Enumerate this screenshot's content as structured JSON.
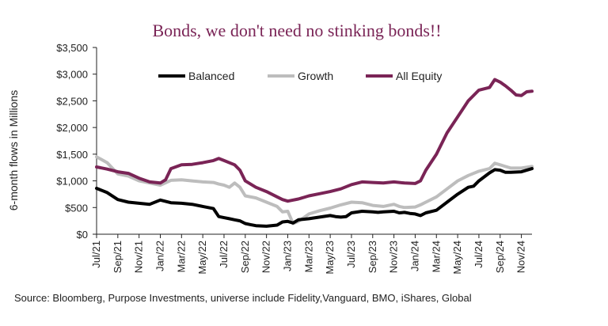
{
  "chart_data": {
    "type": "line",
    "title": "Bonds, we don't need no stinking bonds!!",
    "ylabel": "6-month flows in Millions",
    "xlabel": "",
    "ylim": [
      0,
      3500
    ],
    "y_ticks": [
      "$0",
      "$500",
      "$1,000",
      "$1,500",
      "$2,000",
      "$2,500",
      "$3,000",
      "$3,500"
    ],
    "y_tick_values": [
      0,
      500,
      1000,
      1500,
      2000,
      2500,
      3000,
      3500
    ],
    "x_tick_labels": [
      "Jul/21",
      "Sep/21",
      "Nov/21",
      "Jan/22",
      "Mar/22",
      "May/22",
      "Jul/22",
      "Sep/22",
      "Nov/22",
      "Jan/23",
      "Mar/23",
      "May/23",
      "Jul/23",
      "Sep/23",
      "Nov/23",
      "Jan/24",
      "Mar/24",
      "May/24",
      "Jul/24",
      "Sep/24",
      "Nov/24"
    ],
    "x_tick_months": [
      0,
      2,
      4,
      6,
      8,
      10,
      12,
      14,
      16,
      18,
      20,
      22,
      24,
      26,
      28,
      30,
      32,
      34,
      36,
      38,
      40
    ],
    "grid": false,
    "legend_position": "top",
    "colors": {
      "Balanced": "#000000",
      "Growth": "#bdbdbd",
      "All Equity": "#7a2456"
    },
    "series": [
      {
        "name": "Balanced",
        "points": [
          [
            0,
            860
          ],
          [
            1,
            780
          ],
          [
            2,
            650
          ],
          [
            3,
            600
          ],
          [
            4,
            580
          ],
          [
            5,
            560
          ],
          [
            6,
            640
          ],
          [
            7,
            590
          ],
          [
            8,
            580
          ],
          [
            9,
            560
          ],
          [
            10,
            520
          ],
          [
            11,
            480
          ],
          [
            11.5,
            330
          ],
          [
            12,
            310
          ],
          [
            12.5,
            290
          ],
          [
            13,
            270
          ],
          [
            13.5,
            250
          ],
          [
            14,
            200
          ],
          [
            14.5,
            180
          ],
          [
            15,
            160
          ],
          [
            16,
            150
          ],
          [
            17,
            170
          ],
          [
            17.5,
            230
          ],
          [
            18,
            240
          ],
          [
            18.5,
            210
          ],
          [
            19,
            270
          ],
          [
            20,
            290
          ],
          [
            21,
            320
          ],
          [
            22,
            350
          ],
          [
            22.5,
            330
          ],
          [
            23,
            320
          ],
          [
            23.5,
            330
          ],
          [
            24,
            400
          ],
          [
            25,
            430
          ],
          [
            26,
            420
          ],
          [
            26.5,
            410
          ],
          [
            27,
            420
          ],
          [
            28,
            430
          ],
          [
            28.5,
            400
          ],
          [
            29,
            410
          ],
          [
            29.5,
            390
          ],
          [
            30,
            380
          ],
          [
            30.5,
            350
          ],
          [
            31,
            400
          ],
          [
            32,
            450
          ],
          [
            33,
            600
          ],
          [
            34,
            750
          ],
          [
            35,
            880
          ],
          [
            35.5,
            900
          ],
          [
            36,
            1000
          ],
          [
            37,
            1150
          ],
          [
            37.5,
            1210
          ],
          [
            38,
            1200
          ],
          [
            38.5,
            1160
          ],
          [
            39,
            1160
          ],
          [
            40,
            1170
          ],
          [
            40.5,
            1200
          ],
          [
            41,
            1230
          ]
        ]
      },
      {
        "name": "Growth",
        "points": [
          [
            0,
            1450
          ],
          [
            1,
            1340
          ],
          [
            2,
            1130
          ],
          [
            3,
            1090
          ],
          [
            4,
            1000
          ],
          [
            5,
            960
          ],
          [
            6,
            920
          ],
          [
            7,
            1010
          ],
          [
            8,
            1020
          ],
          [
            9,
            1000
          ],
          [
            10,
            980
          ],
          [
            11,
            970
          ],
          [
            11.5,
            940
          ],
          [
            12,
            920
          ],
          [
            12.5,
            880
          ],
          [
            13,
            960
          ],
          [
            13.5,
            880
          ],
          [
            14,
            720
          ],
          [
            15,
            680
          ],
          [
            16,
            600
          ],
          [
            17,
            520
          ],
          [
            17.5,
            420
          ],
          [
            18,
            430
          ],
          [
            18.5,
            200
          ],
          [
            19,
            240
          ],
          [
            20,
            380
          ],
          [
            21,
            440
          ],
          [
            22,
            490
          ],
          [
            23,
            550
          ],
          [
            24,
            600
          ],
          [
            25,
            590
          ],
          [
            26,
            540
          ],
          [
            27,
            520
          ],
          [
            28,
            560
          ],
          [
            28.5,
            520
          ],
          [
            29,
            500
          ],
          [
            30,
            510
          ],
          [
            30.5,
            550
          ],
          [
            31,
            600
          ],
          [
            32,
            700
          ],
          [
            33,
            850
          ],
          [
            34,
            1000
          ],
          [
            35,
            1100
          ],
          [
            36,
            1180
          ],
          [
            37,
            1230
          ],
          [
            37.5,
            1330
          ],
          [
            38,
            1300
          ],
          [
            39,
            1240
          ],
          [
            40,
            1240
          ],
          [
            41,
            1270
          ]
        ]
      },
      {
        "name": "All Equity",
        "points": [
          [
            0,
            1260
          ],
          [
            1,
            1220
          ],
          [
            2,
            1170
          ],
          [
            3,
            1140
          ],
          [
            4,
            1050
          ],
          [
            5,
            980
          ],
          [
            6,
            960
          ],
          [
            6.5,
            1020
          ],
          [
            7,
            1230
          ],
          [
            8,
            1300
          ],
          [
            9,
            1310
          ],
          [
            10,
            1340
          ],
          [
            11,
            1380
          ],
          [
            11.5,
            1420
          ],
          [
            12,
            1380
          ],
          [
            13,
            1300
          ],
          [
            13.5,
            1200
          ],
          [
            14,
            1000
          ],
          [
            15,
            880
          ],
          [
            16,
            800
          ],
          [
            17,
            700
          ],
          [
            17.5,
            650
          ],
          [
            18,
            620
          ],
          [
            19,
            660
          ],
          [
            20,
            720
          ],
          [
            21,
            760
          ],
          [
            22,
            800
          ],
          [
            23,
            850
          ],
          [
            24,
            930
          ],
          [
            25,
            980
          ],
          [
            26,
            970
          ],
          [
            27,
            960
          ],
          [
            28,
            980
          ],
          [
            29,
            960
          ],
          [
            30,
            950
          ],
          [
            30.5,
            1000
          ],
          [
            31,
            1200
          ],
          [
            32,
            1500
          ],
          [
            33,
            1900
          ],
          [
            34,
            2200
          ],
          [
            35,
            2500
          ],
          [
            36,
            2700
          ],
          [
            37,
            2750
          ],
          [
            37.5,
            2900
          ],
          [
            38,
            2850
          ],
          [
            38.5,
            2780
          ],
          [
            39,
            2700
          ],
          [
            39.5,
            2610
          ],
          [
            40,
            2600
          ],
          [
            40.5,
            2670
          ],
          [
            41,
            2680
          ]
        ]
      }
    ],
    "source": "Source: Bloomberg, Purpose Investments, universe include Fidelity,Vanguard, BMO, iShares, Global"
  }
}
